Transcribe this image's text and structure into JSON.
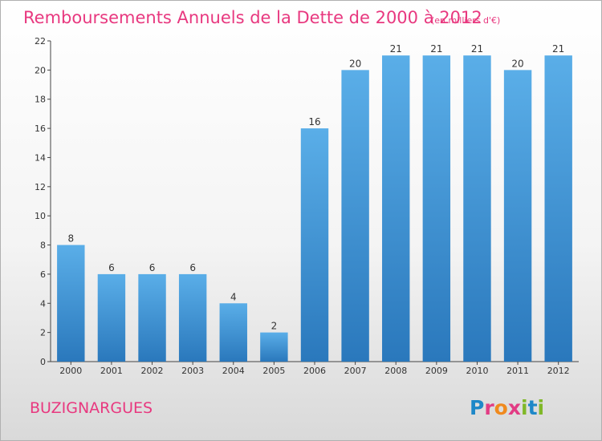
{
  "chart_data": {
    "type": "bar",
    "title": "Remboursements Annuels de la Dette de 2000 à 2012",
    "subtitle": "(en milliers d'€)",
    "categories": [
      "2000",
      "2001",
      "2002",
      "2003",
      "2004",
      "2005",
      "2006",
      "2007",
      "2008",
      "2009",
      "2010",
      "2011",
      "2012"
    ],
    "values": [
      8,
      6,
      6,
      6,
      4,
      2,
      16,
      20,
      21,
      21,
      21,
      20,
      21
    ],
    "data_labels": [
      "8",
      "6",
      "6",
      "6",
      "4",
      "2",
      "16",
      "20",
      "21",
      "21",
      "21",
      "20",
      "21"
    ],
    "ylim": [
      0,
      22
    ],
    "yticks": [
      "0",
      "2",
      "4",
      "6",
      "8",
      "10",
      "12",
      "14",
      "16",
      "18",
      "20",
      "22"
    ],
    "xlabel": "",
    "ylabel": "",
    "grid": false,
    "bar_color": "#3d93d6"
  },
  "footer": {
    "place": "BUZIGNARGUES",
    "logo_letters": [
      "P",
      "r",
      "o",
      "x",
      "i",
      "t",
      "i"
    ],
    "logo_colors": [
      "#1e88c8",
      "#e23c84",
      "#f08a1e",
      "#e23c84",
      "#80b828",
      "#1e88c8",
      "#80b828"
    ]
  },
  "colors": {
    "accent": "#e8387f",
    "axis": "#444444"
  }
}
